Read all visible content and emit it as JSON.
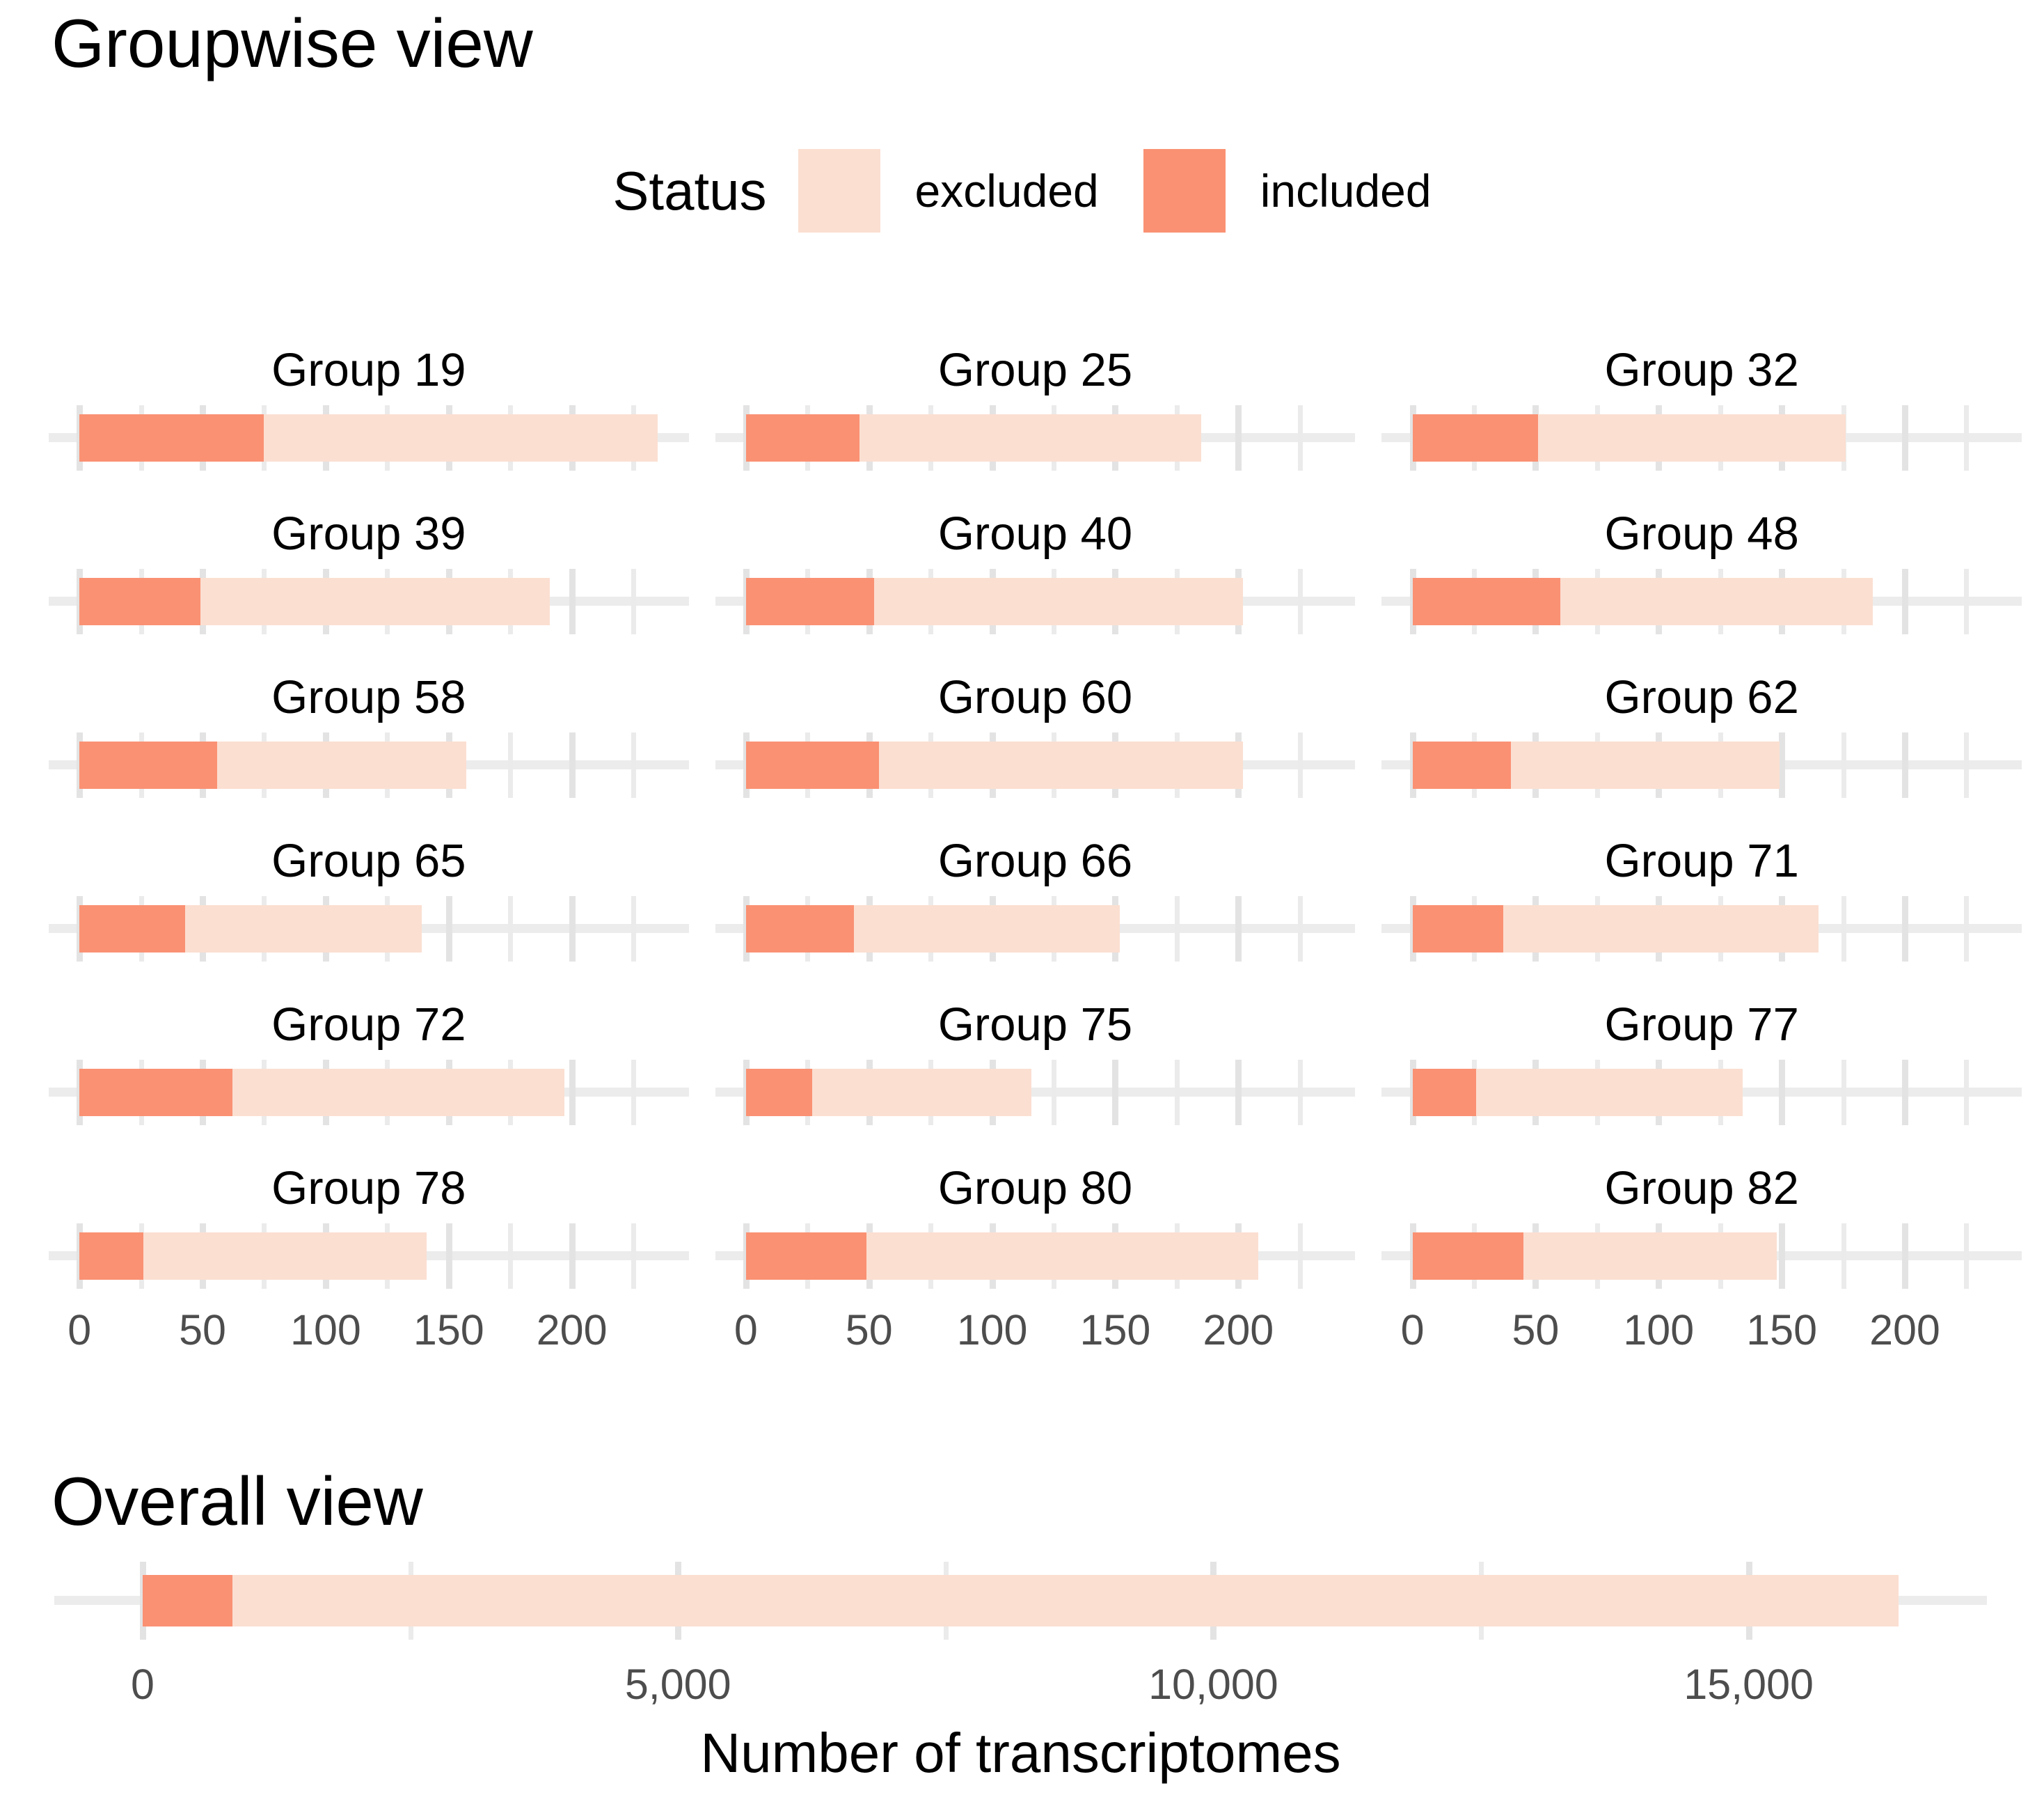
{
  "colors": {
    "included": "#FA9173",
    "excluded": "#FBDFD1",
    "grid_minor": "#EBEBEB",
    "grid_major": "#E3E3E3",
    "centerline": "#ECECEC",
    "tick_label": "#4D4D4D",
    "text": "#000000",
    "background": "#FFFFFF"
  },
  "legend": {
    "title": "Status",
    "items": [
      {
        "label": "excluded",
        "color": "#FBDFD1"
      },
      {
        "label": "included",
        "color": "#FA9173"
      }
    ]
  },
  "chart_data": {
    "type": "bar",
    "orientation": "horizontal",
    "stacked": true,
    "legend_position": "top-center",
    "groupwise": {
      "title": "Groupwise view",
      "columns": 3,
      "x_axis": {
        "domain": [
          -12.5,
          247.5
        ],
        "tick_step": 25,
        "tick_max": 225,
        "major_every": 50,
        "labeled_ticks": [
          {
            "v": 0,
            "label": "0"
          },
          {
            "v": 50,
            "label": "50"
          },
          {
            "v": 100,
            "label": "100"
          },
          {
            "v": 150,
            "label": "150"
          },
          {
            "v": 200,
            "label": "200"
          }
        ]
      },
      "facets": [
        {
          "group": "Group 19",
          "included": 75,
          "excluded": 160
        },
        {
          "group": "Group 25",
          "included": 46,
          "excluded": 139
        },
        {
          "group": "Group 32",
          "included": 51,
          "excluded": 125
        },
        {
          "group": "Group 39",
          "included": 49,
          "excluded": 142
        },
        {
          "group": "Group 40",
          "included": 52,
          "excluded": 150
        },
        {
          "group": "Group 48",
          "included": 60,
          "excluded": 127
        },
        {
          "group": "Group 58",
          "included": 56,
          "excluded": 101
        },
        {
          "group": "Group 60",
          "included": 54,
          "excluded": 148
        },
        {
          "group": "Group 62",
          "included": 40,
          "excluded": 109
        },
        {
          "group": "Group 65",
          "included": 43,
          "excluded": 96
        },
        {
          "group": "Group 66",
          "included": 44,
          "excluded": 108
        },
        {
          "group": "Group 71",
          "included": 37,
          "excluded": 128
        },
        {
          "group": "Group 72",
          "included": 62,
          "excluded": 135
        },
        {
          "group": "Group 75",
          "included": 27,
          "excluded": 89
        },
        {
          "group": "Group 77",
          "included": 26,
          "excluded": 108
        },
        {
          "group": "Group 78",
          "included": 26,
          "excluded": 115
        },
        {
          "group": "Group 80",
          "included": 49,
          "excluded": 159
        },
        {
          "group": "Group 82",
          "included": 45,
          "excluded": 103
        }
      ]
    },
    "overall": {
      "title": "Overall view",
      "included": 840,
      "excluded": 15560,
      "xlabel": "Number of transcriptomes",
      "x_axis": {
        "domain": [
          -825,
          17225
        ],
        "tick_step": 2500,
        "tick_max": 15000,
        "major_every": 5000,
        "labeled_ticks": [
          {
            "v": 0,
            "label": "0"
          },
          {
            "v": 5000,
            "label": "5,000"
          },
          {
            "v": 10000,
            "label": "10,000"
          },
          {
            "v": 15000,
            "label": "15,000"
          }
        ]
      }
    }
  }
}
